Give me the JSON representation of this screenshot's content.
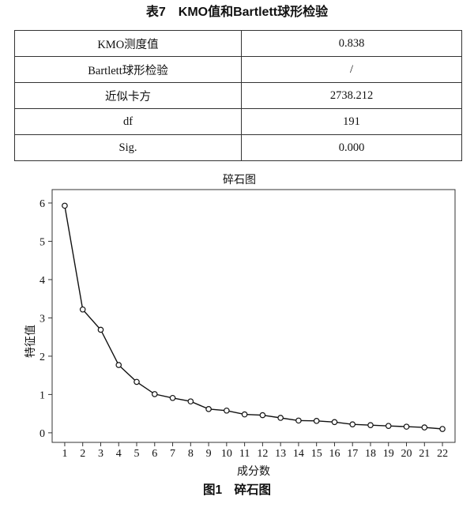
{
  "table": {
    "caption": "表7　KMO值和Bartlett球形检验",
    "rows": [
      {
        "label": "KMO测度值",
        "value": "0.838"
      },
      {
        "label": "Bartlett球形检验",
        "value": "/"
      },
      {
        "label": "近似卡方",
        "value": "2738.212"
      },
      {
        "label": "df",
        "value": "191"
      },
      {
        "label": "Sig.",
        "value": "0.000"
      }
    ]
  },
  "figure": {
    "caption": "图1　碎石图"
  },
  "chart_data": {
    "type": "line",
    "title": "碎石图",
    "xlabel": "成分数",
    "ylabel": "特征值",
    "x": [
      1,
      2,
      3,
      4,
      5,
      6,
      7,
      8,
      9,
      10,
      11,
      12,
      13,
      14,
      15,
      16,
      17,
      18,
      19,
      20,
      21,
      22
    ],
    "series": [
      {
        "values": [
          5.93,
          3.22,
          2.69,
          1.77,
          1.33,
          1.01,
          0.91,
          0.82,
          0.62,
          0.58,
          0.48,
          0.46,
          0.39,
          0.32,
          0.31,
          0.28,
          0.22,
          0.2,
          0.18,
          0.16,
          0.14,
          0.1
        ]
      }
    ],
    "yticks": [
      0,
      1,
      2,
      3,
      4,
      5,
      6
    ],
    "ylim": [
      -0.25,
      6.35
    ],
    "xlim": [
      0.3,
      22.7
    ],
    "marker": "hollow-circle",
    "grid": false,
    "legend": "none"
  }
}
